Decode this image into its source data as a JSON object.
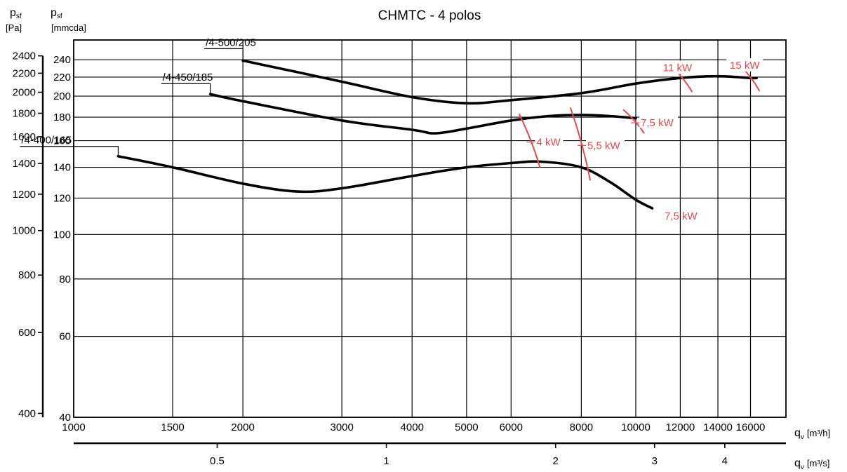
{
  "chart_data": {
    "type": "line",
    "title": "CHMTC  -  4 polos",
    "x_scale": "log",
    "y_scale": "log",
    "xlim": [
      1000,
      18500
    ],
    "ylim": [
      40,
      265
    ],
    "grid": true,
    "x_axis": {
      "label_main": "q",
      "label_sub": "v",
      "unit": "[m³/h]",
      "ticks": [
        1000,
        1500,
        2000,
        3000,
        4000,
        5000,
        6000,
        8000,
        10000,
        12000,
        14000,
        16000
      ],
      "tick_labels": [
        "1000",
        "1500",
        "2000",
        "3000",
        "4000",
        "5000",
        "6000",
        "8000",
        "10000",
        "12000",
        "14000",
        "16000"
      ]
    },
    "x2_axis": {
      "label_main": "q",
      "label_sub": "v",
      "unit": "[m³/s]",
      "ticks": [
        0.5,
        1,
        2,
        3,
        4
      ],
      "tick_labels": [
        "0.5",
        "1",
        "2",
        "3",
        "4"
      ]
    },
    "y_axis_mmcda": {
      "label_main": "p",
      "label_sub": "sf",
      "unit": "[mmcda]",
      "ticks": [
        40,
        60,
        80,
        100,
        120,
        140,
        160,
        180,
        200,
        220,
        240
      ],
      "tick_labels": [
        "40",
        "60",
        "80",
        "100",
        "120",
        "140",
        "160",
        "180",
        "200",
        "220",
        "240"
      ]
    },
    "y_axis_pa": {
      "label_main": "p",
      "label_sub": "sf",
      "unit": "[Pa]",
      "ticks": [
        400,
        600,
        800,
        1000,
        1200,
        1400,
        1600,
        1800,
        2000,
        2200,
        2400
      ],
      "tick_labels": [
        "400",
        "600",
        "800",
        "1000",
        "1200",
        "1400",
        "1600",
        "1800",
        "2000",
        "2200",
        "2400"
      ]
    },
    "series": [
      {
        "name": "/4-400/165",
        "points": [
          [
            1200,
            148
          ],
          [
            1500,
            140
          ],
          [
            2000,
            129
          ],
          [
            2500,
            124
          ],
          [
            3000,
            126
          ],
          [
            4000,
            134
          ],
          [
            5000,
            140
          ],
          [
            6000,
            143
          ],
          [
            6800,
            144
          ],
          [
            8000,
            140
          ],
          [
            9000,
            130
          ],
          [
            10000,
            119
          ],
          [
            10700,
            114
          ]
        ]
      },
      {
        "name": "/4-450/185",
        "points": [
          [
            1750,
            202
          ],
          [
            2000,
            195
          ],
          [
            3000,
            177
          ],
          [
            4000,
            169
          ],
          [
            4400,
            166
          ],
          [
            5000,
            170
          ],
          [
            6000,
            177
          ],
          [
            7000,
            181
          ],
          [
            8000,
            182
          ],
          [
            9000,
            181
          ],
          [
            10000,
            179
          ]
        ]
      },
      {
        "name": "/4-500/205",
        "points": [
          [
            2000,
            239
          ],
          [
            3000,
            215
          ],
          [
            4000,
            199
          ],
          [
            5000,
            193
          ],
          [
            6000,
            196
          ],
          [
            8000,
            203
          ],
          [
            10000,
            213
          ],
          [
            12000,
            219
          ],
          [
            14000,
            221
          ],
          [
            16000,
            219
          ],
          [
            16400,
            219
          ]
        ]
      }
    ],
    "motor_marks": [
      {
        "label": "4 kW",
        "points": [
          [
            6200,
            183
          ],
          [
            6750,
            140
          ]
        ]
      },
      {
        "label": "5,5 kW",
        "points": [
          [
            7650,
            189
          ],
          [
            8300,
            131
          ]
        ]
      },
      {
        "label": "7,5 kW",
        "points": [
          [
            9500,
            187
          ],
          [
            10350,
            166
          ]
        ]
      },
      {
        "label": "11 kW",
        "points": [
          [
            11700,
            229
          ],
          [
            12600,
            204
          ]
        ]
      },
      {
        "label": "15 kW",
        "points": [
          [
            15400,
            232
          ],
          [
            16600,
            205
          ]
        ]
      },
      {
        "label": "7,5 kW",
        "points": []
      }
    ]
  }
}
